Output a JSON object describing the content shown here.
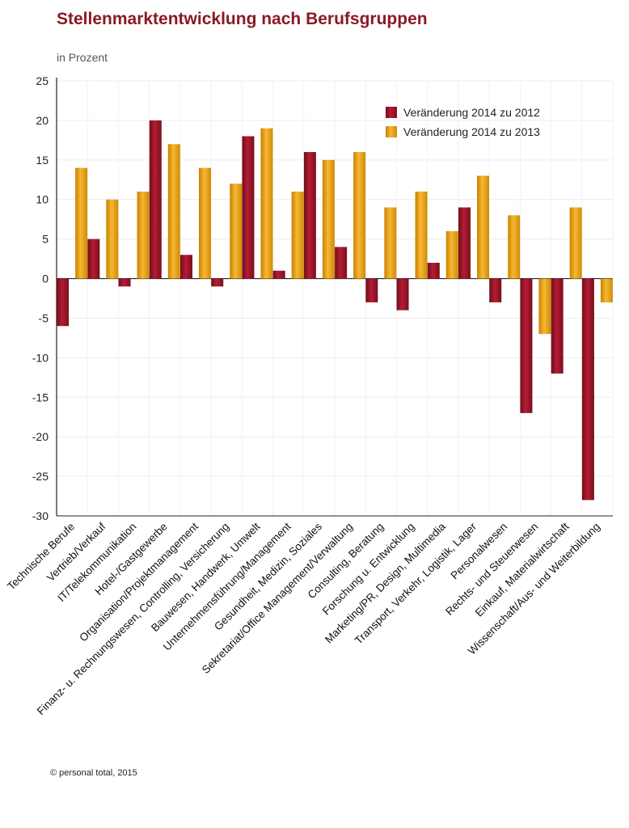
{
  "footer": "© personal total, 2015",
  "colors": {
    "series1": "#9b1428",
    "series2": "#e8a00c",
    "title": "#8a1a24",
    "grid": "#ececec"
  },
  "chart_data": {
    "type": "bar",
    "title": "Stellenmarktentwicklung nach Berufsgruppen",
    "ylabel": "in Prozent",
    "xlabel": "",
    "ylim": [
      -30,
      25
    ],
    "yticks": [
      25,
      20,
      15,
      10,
      5,
      0,
      -5,
      -10,
      -15,
      -20,
      -25,
      -30
    ],
    "legend_position": "top-right",
    "categories": [
      "Technische Berufe",
      "Vertrieb/Verkauf",
      "IT/Telekommunikation",
      "Hotel-/Gastgewerbe",
      "Organisation/Projektmanagement",
      "Finanz- u. Rechnungswesen, Controlling, Versicherung",
      "Bauwesen, Handwerk, Umwelt",
      "Unternehmensführung/Management",
      "Gesundheit, Medizin, Soziales",
      "Sekretariat/Office Management/Verwaltung",
      "Consulting, Beratung",
      "Forschung u. Entwicklung",
      "Marketing/PR, Design, Multimedia",
      "Transport, Verkehr, Logistik, Lager",
      "Personalwesen",
      "Rechts- und Steuerwesen",
      "Einkauf, Materialwirtschaft",
      "Wissenschaft/Aus- und Weiterbildung"
    ],
    "series": [
      {
        "name": "Veränderung 2014 zu 2012",
        "values": [
          -6,
          5,
          -1,
          20,
          3,
          -1,
          18,
          1,
          16,
          4,
          -3,
          -4,
          2,
          9,
          -3,
          -17,
          -12,
          -28
        ]
      },
      {
        "name": "Veränderung 2014 zu 2013",
        "values": [
          14,
          10,
          11,
          17,
          14,
          12,
          19,
          11,
          15,
          16,
          9,
          11,
          6,
          13,
          8,
          -7,
          9,
          -3
        ]
      }
    ]
  }
}
